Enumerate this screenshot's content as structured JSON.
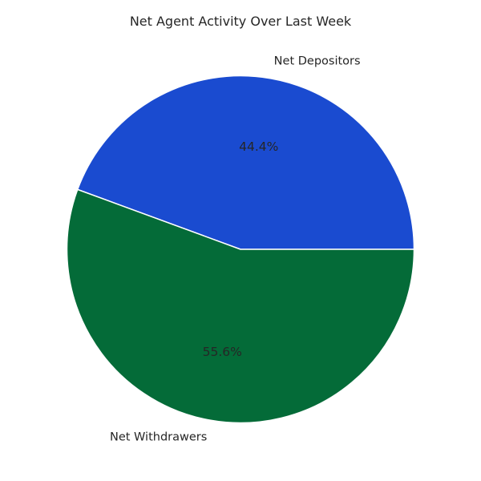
{
  "chart_data": {
    "type": "pie",
    "title": "Net Agent Activity Over Last Week",
    "categories": [
      "Net Depositors",
      "Net Withdrawers"
    ],
    "values": [
      44.4,
      55.6
    ],
    "percent_labels": [
      "44.4%",
      "55.6%"
    ],
    "colors": [
      "#1a4bd0",
      "#046b38"
    ],
    "start_angle_deg": 0,
    "direction": "counterclockwise",
    "wedge_edge_color": "#ffffff",
    "legend": "none"
  }
}
